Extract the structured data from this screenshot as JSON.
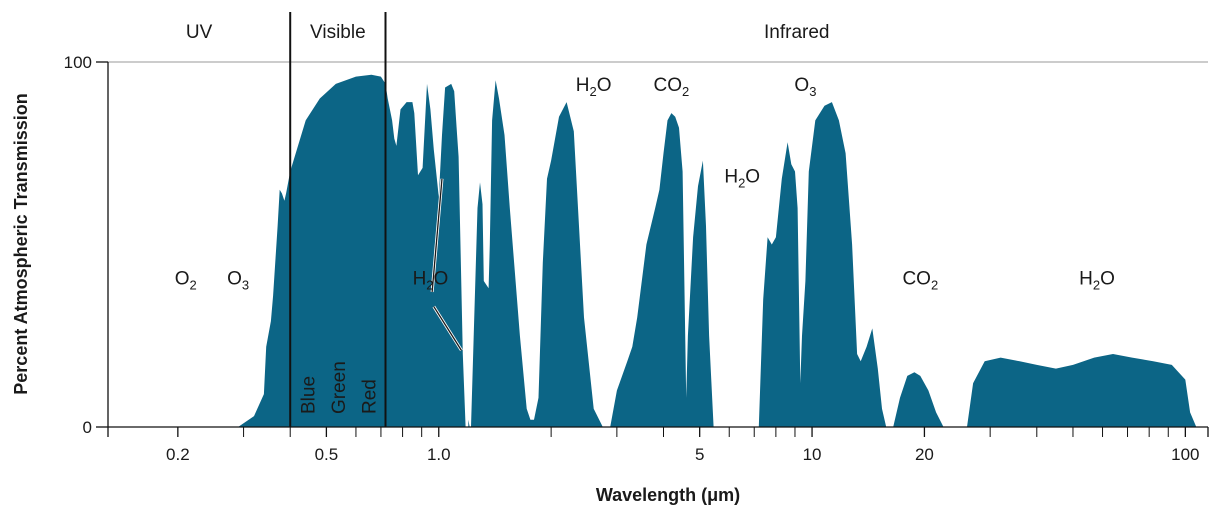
{
  "chart_data": {
    "type": "area",
    "xlabel": "Wavelength (μm)",
    "ylabel": "Percent Atmospheric Transmission",
    "xscale": "log",
    "xlim": [
      0.13,
      115
    ],
    "ylim": [
      0,
      100
    ],
    "yticks": [
      0,
      100
    ],
    "xticks": [
      {
        "value": 0.2,
        "label": "0.2"
      },
      {
        "value": 0.5,
        "label": "0.5"
      },
      {
        "value": 1.0,
        "label": "1.0"
      },
      {
        "value": 5,
        "label": "5"
      },
      {
        "value": 10,
        "label": "10"
      },
      {
        "value": 20,
        "label": "20"
      },
      {
        "value": 100,
        "label": "100"
      }
    ],
    "minor_xticks": [
      0.3,
      0.4,
      0.6,
      0.7,
      0.8,
      0.9,
      2,
      3,
      4,
      6,
      7,
      8,
      9,
      30,
      40,
      50,
      60,
      70,
      80,
      90
    ],
    "color": "#0c6586",
    "regions": [
      {
        "name": "UV",
        "from": 0.13,
        "to": 0.4
      },
      {
        "name": "Visible",
        "from": 0.4,
        "to": 0.72
      },
      {
        "name": "Infrared",
        "from": 0.72,
        "to": 115
      }
    ],
    "visible_bands": [
      "Blue",
      "Green",
      "Red"
    ],
    "absorbers": [
      {
        "main": "O",
        "sub": "2",
        "tail": "",
        "x": 0.21,
        "y": 39
      },
      {
        "main": "O",
        "sub": "3",
        "tail": "",
        "x": 0.29,
        "y": 39
      },
      {
        "main": "H",
        "sub": "2",
        "tail": "O",
        "x": 0.95,
        "y": 39
      },
      {
        "main": "H",
        "sub": "2",
        "tail": "O",
        "x": 2.6,
        "y": 92
      },
      {
        "main": "C",
        "sub": "",
        "tail": "O",
        "x": 4.2,
        "y": 92,
        "tail2": "2"
      },
      {
        "main": "H",
        "sub": "2",
        "tail": "O",
        "x": 6.5,
        "y": 67
      },
      {
        "main": "O",
        "sub": "3",
        "tail": "",
        "x": 9.6,
        "y": 92
      },
      {
        "main": "C",
        "sub": "",
        "tail": "O",
        "x": 19.5,
        "y": 39,
        "tail2": "2"
      },
      {
        "main": "H",
        "sub": "2",
        "tail": "O",
        "x": 58,
        "y": 39
      }
    ],
    "windows": [
      [
        [
          0.29,
          0
        ],
        [
          0.32,
          3
        ],
        [
          0.34,
          9
        ],
        [
          0.345,
          22
        ],
        [
          0.355,
          29
        ],
        [
          0.36,
          36
        ],
        [
          0.37,
          55
        ],
        [
          0.375,
          65
        ],
        [
          0.38,
          64
        ],
        [
          0.386,
          62
        ],
        [
          0.39,
          64
        ],
        [
          0.4,
          70
        ],
        [
          0.44,
          84
        ],
        [
          0.48,
          90
        ],
        [
          0.53,
          94
        ],
        [
          0.6,
          96
        ],
        [
          0.66,
          96.5
        ],
        [
          0.7,
          96
        ],
        [
          0.72,
          94
        ],
        [
          0.73,
          90
        ],
        [
          0.75,
          84
        ],
        [
          0.76,
          79
        ],
        [
          0.77,
          77
        ],
        [
          0.79,
          87
        ],
        [
          0.82,
          89
        ],
        [
          0.85,
          89
        ],
        [
          0.86,
          86
        ],
        [
          0.88,
          69
        ],
        [
          0.905,
          71
        ],
        [
          0.93,
          94
        ],
        [
          0.95,
          87
        ],
        [
          0.97,
          76
        ],
        [
          1.0,
          63
        ],
        [
          1.02,
          80
        ],
        [
          1.04,
          93
        ],
        [
          1.08,
          94
        ],
        [
          1.1,
          92
        ],
        [
          1.12,
          80
        ],
        [
          1.13,
          74
        ],
        [
          1.16,
          20
        ],
        [
          1.18,
          0
        ]
      ],
      [
        [
          1.2,
          2
        ],
        [
          1.21,
          0
        ],
        [
          1.22,
          0
        ],
        [
          1.24,
          24
        ],
        [
          1.27,
          60
        ],
        [
          1.29,
          67
        ],
        [
          1.31,
          61
        ],
        [
          1.32,
          40
        ],
        [
          1.36,
          38
        ],
        [
          1.37,
          50
        ],
        [
          1.39,
          84
        ],
        [
          1.42,
          95
        ],
        [
          1.45,
          90
        ],
        [
          1.5,
          80
        ],
        [
          1.55,
          60
        ],
        [
          1.65,
          25
        ],
        [
          1.72,
          5
        ],
        [
          1.76,
          2
        ],
        [
          1.8,
          2
        ],
        [
          1.85,
          8
        ],
        [
          1.9,
          45
        ],
        [
          1.95,
          68
        ],
        [
          2.0,
          73
        ],
        [
          2.1,
          85
        ],
        [
          2.2,
          89
        ],
        [
          2.3,
          81
        ],
        [
          2.45,
          30
        ],
        [
          2.6,
          5
        ],
        [
          2.75,
          0
        ]
      ],
      [
        [
          2.88,
          0
        ],
        [
          3.0,
          10
        ],
        [
          3.2,
          18
        ],
        [
          3.3,
          22
        ],
        [
          3.4,
          30
        ],
        [
          3.6,
          50
        ],
        [
          3.8,
          60
        ],
        [
          3.9,
          65
        ],
        [
          4.0,
          75
        ],
        [
          4.1,
          84
        ],
        [
          4.2,
          86
        ],
        [
          4.3,
          85
        ],
        [
          4.4,
          82
        ],
        [
          4.5,
          70
        ],
        [
          4.6,
          8
        ],
        [
          4.65,
          25
        ],
        [
          4.8,
          52
        ],
        [
          4.95,
          66
        ],
        [
          5.1,
          73
        ],
        [
          5.2,
          55
        ],
        [
          5.3,
          25
        ],
        [
          5.45,
          0
        ]
      ],
      [
        [
          7.2,
          0
        ],
        [
          7.4,
          35
        ],
        [
          7.6,
          52
        ],
        [
          7.8,
          50
        ],
        [
          8.0,
          52
        ],
        [
          8.3,
          68
        ],
        [
          8.6,
          78
        ],
        [
          8.8,
          72
        ],
        [
          9.0,
          70
        ],
        [
          9.15,
          60
        ],
        [
          9.3,
          12
        ],
        [
          9.4,
          25
        ],
        [
          9.6,
          40
        ],
        [
          9.8,
          70
        ],
        [
          10.2,
          84
        ],
        [
          10.8,
          88
        ],
        [
          11.3,
          89
        ],
        [
          11.8,
          84
        ],
        [
          12.3,
          75
        ],
        [
          12.8,
          50
        ],
        [
          13.2,
          20
        ],
        [
          13.5,
          18
        ],
        [
          14.0,
          22
        ],
        [
          14.5,
          27
        ],
        [
          15.0,
          16
        ],
        [
          15.4,
          5
        ],
        [
          15.8,
          0
        ]
      ],
      [
        [
          16.5,
          0
        ],
        [
          17.2,
          8
        ],
        [
          18.0,
          14
        ],
        [
          18.8,
          15
        ],
        [
          19.5,
          14
        ],
        [
          20.5,
          10
        ],
        [
          21.5,
          4
        ],
        [
          22.5,
          0
        ]
      ],
      [
        [
          26.0,
          0
        ],
        [
          27.0,
          12
        ],
        [
          29.0,
          18
        ],
        [
          32.0,
          19
        ],
        [
          36.0,
          18
        ],
        [
          40.0,
          17
        ],
        [
          45.0,
          16
        ],
        [
          50.0,
          17
        ],
        [
          57.0,
          19
        ],
        [
          64.0,
          20
        ],
        [
          72.0,
          19
        ],
        [
          82.0,
          18
        ],
        [
          92.0,
          17
        ],
        [
          100.0,
          13
        ],
        [
          103.0,
          4
        ],
        [
          107.0,
          0
        ]
      ]
    ]
  }
}
